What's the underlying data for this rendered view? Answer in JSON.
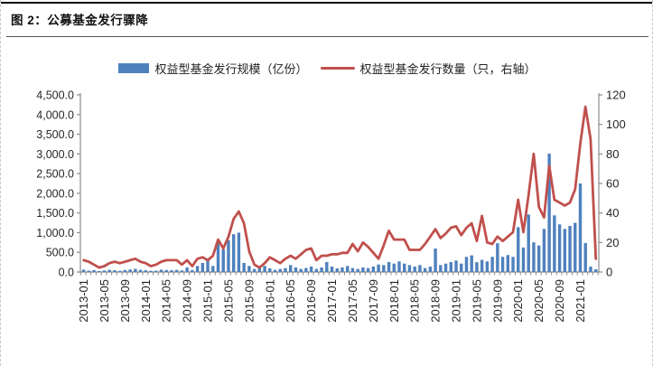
{
  "figure": {
    "title": "图 2：公募基金发行骤降"
  },
  "legend": {
    "bar_label": "权益型基金发行规模（亿份）",
    "line_label": "权益型基金发行数量（只，右轴）"
  },
  "colors": {
    "bar": "#4F81BD",
    "line": "#C0504D",
    "axis": "#8c8c8c",
    "text": "#262626"
  },
  "chart_data": {
    "type": "bar",
    "subtype": "bar-left-axis + line-right-axis combo",
    "title": "公募基金发行骤降",
    "xlabel": "",
    "ylabel_left": "权益型基金发行规模（亿份）",
    "ylabel_right": "权益型基金发行数量（只）",
    "left_axis": {
      "min": 0,
      "max": 4500,
      "tick_labels": [
        "0.0",
        "500.0",
        "1,000.0",
        "1,500.0",
        "2,000.0",
        "2,500.0",
        "3,000.0",
        "3,500.0",
        "4,000.0",
        "4,500.0"
      ]
    },
    "right_axis": {
      "min": 0,
      "max": 120,
      "tick_labels": [
        "0",
        "20",
        "40",
        "60",
        "80",
        "100",
        "120"
      ]
    },
    "x_tick_every": 4,
    "grid": false,
    "legend_position": "top-center",
    "x": [
      "2013-01",
      "2013-02",
      "2013-03",
      "2013-04",
      "2013-05",
      "2013-06",
      "2013-07",
      "2013-08",
      "2013-09",
      "2013-10",
      "2013-11",
      "2013-12",
      "2014-01",
      "2014-02",
      "2014-03",
      "2014-04",
      "2014-05",
      "2014-06",
      "2014-07",
      "2014-08",
      "2014-09",
      "2014-10",
      "2014-11",
      "2014-12",
      "2015-01",
      "2015-02",
      "2015-03",
      "2015-04",
      "2015-05",
      "2015-06",
      "2015-07",
      "2015-08",
      "2015-09",
      "2015-10",
      "2015-11",
      "2015-12",
      "2016-01",
      "2016-02",
      "2016-03",
      "2016-04",
      "2016-05",
      "2016-06",
      "2016-07",
      "2016-08",
      "2016-09",
      "2016-10",
      "2016-11",
      "2016-12",
      "2017-01",
      "2017-02",
      "2017-03",
      "2017-04",
      "2017-05",
      "2017-06",
      "2017-07",
      "2017-08",
      "2017-09",
      "2017-10",
      "2017-11",
      "2017-12",
      "2018-01",
      "2018-02",
      "2018-03",
      "2018-04",
      "2018-05",
      "2018-06",
      "2018-07",
      "2018-08",
      "2018-09",
      "2018-10",
      "2018-11",
      "2018-12",
      "2019-01",
      "2019-02",
      "2019-03",
      "2019-04",
      "2019-05",
      "2019-06",
      "2019-07",
      "2019-08",
      "2019-09",
      "2019-10",
      "2019-11",
      "2019-12",
      "2020-01",
      "2020-02",
      "2020-03",
      "2020-04",
      "2020-05",
      "2020-06",
      "2020-07",
      "2020-08",
      "2020-09",
      "2020-10",
      "2020-11",
      "2020-12",
      "2021-01",
      "2021-02",
      "2021-03",
      "2021-04"
    ],
    "series": [
      {
        "name": "权益型基金发行规模（亿份）",
        "type": "bar",
        "axis": "left",
        "values": [
          60,
          35,
          50,
          25,
          40,
          55,
          45,
          30,
          50,
          65,
          80,
          55,
          45,
          30,
          35,
          60,
          50,
          45,
          55,
          40,
          115,
          50,
          154,
          230,
          346,
          154,
          731,
          577,
          808,
          961,
          1000,
          231,
          154,
          77,
          115,
          154,
          92,
          54,
          77,
          100,
          176,
          115,
          77,
          100,
          138,
          77,
          115,
          252,
          138,
          92,
          115,
          154,
          100,
          77,
          115,
          99,
          138,
          191,
          176,
          252,
          214,
          268,
          214,
          176,
          138,
          176,
          99,
          138,
          597,
          176,
          214,
          252,
          291,
          214,
          385,
          423,
          250,
          308,
          269,
          385,
          731,
          385,
          431,
          385,
          1138,
          623,
          1461,
          754,
          673,
          1095,
          3008,
          1440,
          1210,
          1095,
          1172,
          1249,
          2250,
          737,
          138,
          69
        ]
      },
      {
        "name": "权益型基金发行数量（只，右轴）",
        "type": "line",
        "axis": "right",
        "values": [
          8,
          7,
          5,
          3,
          4,
          6,
          7,
          6,
          7,
          8,
          9,
          7,
          6,
          4,
          5,
          7,
          8,
          8,
          8,
          5,
          8,
          4,
          9,
          10,
          8,
          11,
          22,
          16,
          24,
          36,
          41,
          33,
          14,
          5,
          3,
          6,
          10,
          8,
          6,
          9,
          11,
          9,
          12,
          15,
          16,
          8,
          11,
          11,
          12,
          12,
          13,
          13,
          19,
          14,
          20,
          17,
          13,
          9,
          18,
          28,
          22,
          22,
          22,
          15,
          15,
          15,
          19,
          24,
          29,
          23,
          26,
          30,
          31,
          25,
          30,
          33,
          21,
          38,
          20,
          19,
          24,
          21,
          24,
          27,
          49,
          27,
          52,
          80,
          44,
          37,
          72,
          49,
          47,
          45,
          47,
          56,
          87,
          112,
          90,
          9
        ]
      }
    ]
  }
}
